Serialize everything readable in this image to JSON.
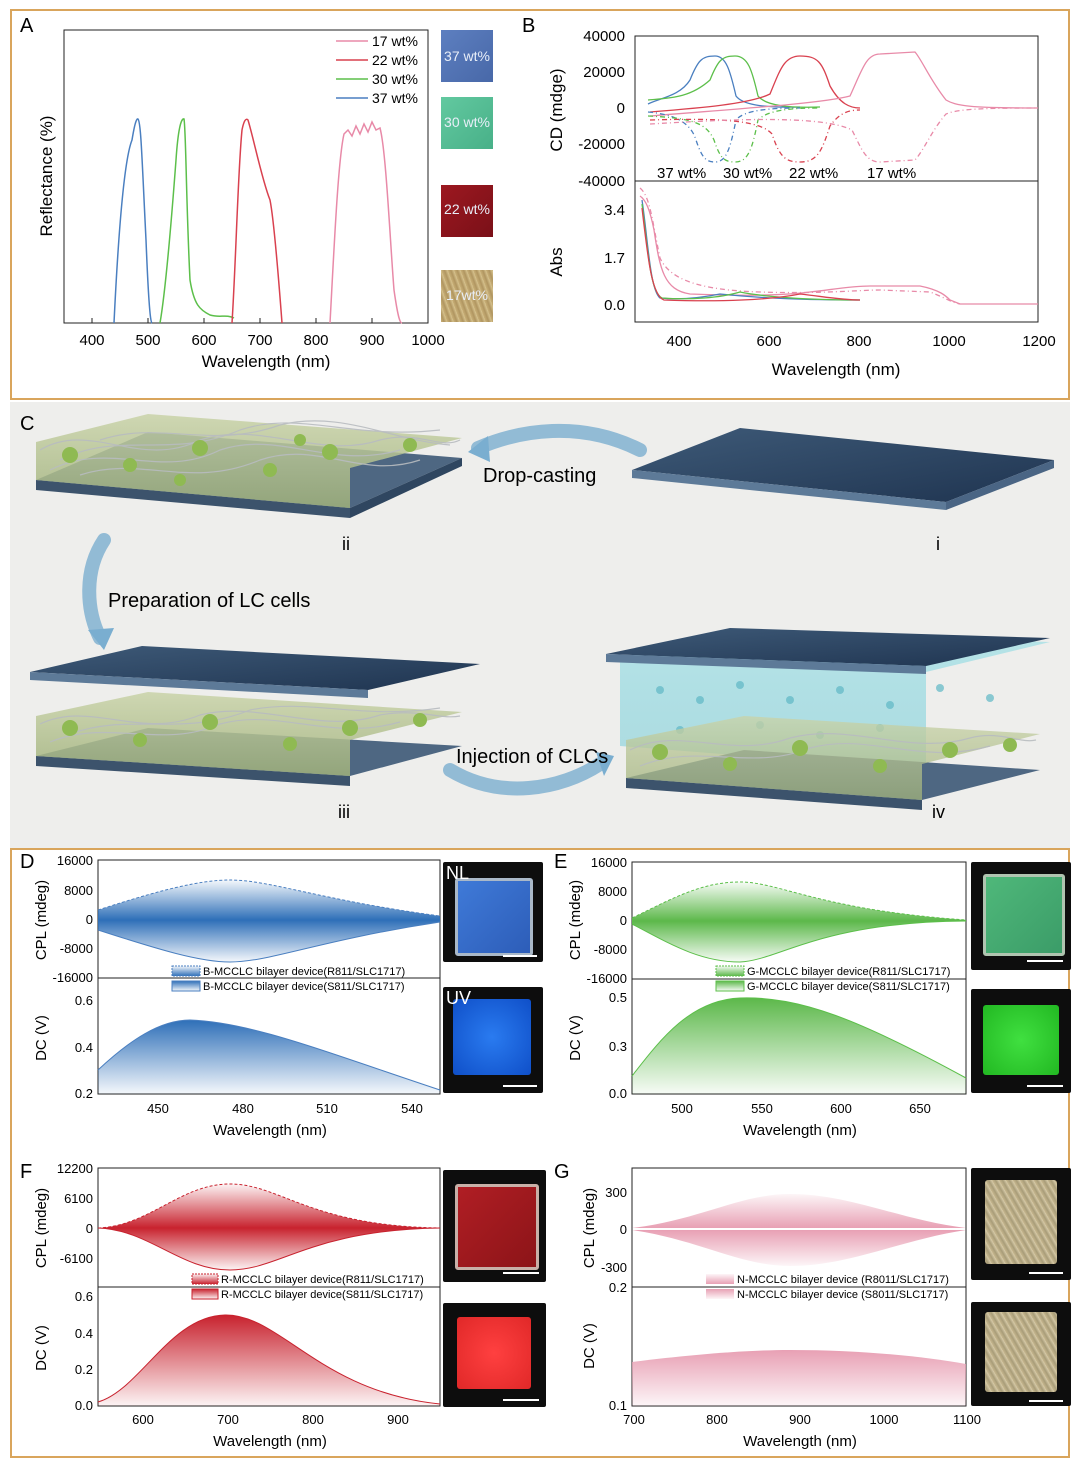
{
  "panel_a": {
    "letter": "A",
    "xlabel": "Wavelength (nm)",
    "ylabel": "Reflectance (%)",
    "xticks": [
      "400",
      "500",
      "600",
      "700",
      "800",
      "900",
      "1000"
    ],
    "legend": [
      "17 wt%",
      "22 wt%",
      "30 wt%",
      "37 wt%"
    ],
    "swatches": [
      "37 wt%",
      "30 wt%",
      "22 wt%",
      "17wt%"
    ]
  },
  "panel_b": {
    "letter": "B",
    "cd_ylabel": "CD (mdge)",
    "abs_ylabel": "Abs",
    "xlabel": "Wavelength (nm)",
    "cd_yticks": [
      "40000",
      "20000",
      "0",
      "-20000",
      "-40000"
    ],
    "abs_yticks": [
      "3.4",
      "1.7",
      "0.0"
    ],
    "xticks": [
      "400",
      "600",
      "800",
      "1000",
      "1200"
    ],
    "curve_labels": [
      "37 wt%",
      "30 wt%",
      "22 wt%",
      "17 wt%"
    ]
  },
  "panel_c": {
    "letter": "C",
    "drop_casting": "Drop-casting",
    "preparation": "Preparation of  LC cells",
    "injection": "Injection of CLCs",
    "steps": [
      "i",
      "ii",
      "iii",
      "iv"
    ]
  },
  "panel_d": {
    "letter": "D",
    "cpl_ylabel": "CPL (mdeg)",
    "dc_ylabel": "DC (V)",
    "xlabel": "Wavelength (nm)",
    "cpl_yticks": [
      "16000",
      "8000",
      "0",
      "-8000",
      "-16000"
    ],
    "dc_yticks": [
      "0.6",
      "0.4",
      "0.2"
    ],
    "xticks": [
      "450",
      "480",
      "510",
      "540"
    ],
    "legend": [
      "B-MCCLC bilayer device(R811/SLC1717)",
      "B-MCCLC bilayer device(S811/SLC1717)"
    ],
    "photo_labels": [
      "NL",
      "UV"
    ]
  },
  "panel_e": {
    "letter": "E",
    "cpl_ylabel": "CPL (mdeg)",
    "dc_ylabel": "DC (V)",
    "xlabel": "Wavelength (nm)",
    "cpl_yticks": [
      "16000",
      "8000",
      "0",
      "-8000",
      "-16000"
    ],
    "dc_yticks": [
      "0.5",
      "0.3",
      "0.0"
    ],
    "xticks": [
      "500",
      "550",
      "600",
      "650"
    ],
    "legend": [
      "G-MCCLC bilayer device(R811/SLC1717)",
      "G-MCCLC bilayer device(S811/SLC1717)"
    ]
  },
  "panel_f": {
    "letter": "F",
    "cpl_ylabel": "CPL (mdeg)",
    "dc_ylabel": "DC (V)",
    "xlabel": "Wavelength (nm)",
    "cpl_yticks": [
      "12200",
      "6100",
      "0",
      "-6100"
    ],
    "dc_yticks": [
      "0.6",
      "0.4",
      "0.2",
      "0.0"
    ],
    "xticks": [
      "600",
      "700",
      "800",
      "900"
    ],
    "legend": [
      "R-MCCLC bilayer device(R811/SLC1717)",
      "R-MCCLC bilayer device(S811/SLC1717)"
    ]
  },
  "panel_g": {
    "letter": "G",
    "cpl_ylabel": "CPL (mdeg)",
    "dc_ylabel": "DC (V)",
    "xlabel": "Wavelength (nm)",
    "cpl_yticks": [
      "300",
      "0",
      "-300"
    ],
    "dc_yticks": [
      "0.2",
      "0.1"
    ],
    "xticks": [
      "700",
      "800",
      "900",
      "1000",
      "1100"
    ],
    "legend": [
      "N-MCCLC bilayer device (R8011/SLC1717)",
      "N-MCCLC bilayer device (S8011/SLC1717)"
    ]
  },
  "colors": {
    "frame": "#d9a55c",
    "c17": "#e88aa8",
    "c22": "#d9414f",
    "c30": "#5cbf4a",
    "c37": "#4a7fc0"
  }
}
